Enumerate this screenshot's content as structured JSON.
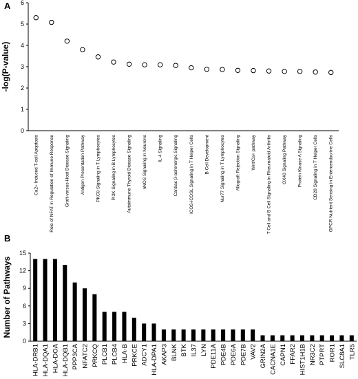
{
  "chart_data": [
    {
      "panel": "A",
      "type": "scatter",
      "ylabel": "-log(P-value)",
      "xlabel": "",
      "ylim": [
        0,
        6
      ],
      "yticks": [
        0,
        1,
        2,
        3,
        4,
        5,
        6
      ],
      "marker": "open-circle",
      "categories": [
        "Ca2+ Induced T-cell Apoptosis",
        "Role of NFAT in Regulation of Immune Response",
        "Graft-versus-Host Disease Signaling",
        "Antigen Presentation Pathway",
        "PKCθ Signaling in T Lymphocytes",
        "PI3K Signaling in B Lymphocytes",
        "Autoimmune Thyroid Disease Signaling",
        "nNOS Signaling in Neurons",
        "IL-4 Signaling",
        "Cardiac β-adrenergic Signaling",
        "iCOS-iCOSL Signaling in T Helper Cells",
        "B Cell Development",
        "Nur77 Signaling in T Lymphocytes",
        "Allograft Rejection Signaling",
        "Wnt/Ca+ pathway",
        "T Cell and B Cell Signaling in Rheumatoid Arthritis",
        "OX40 Signaling Pathway",
        "Protein Kinase A Signaling",
        "CD28 Signaling in T Helper Cells",
        "GPCR Nutrient Sensing in Enteroendocrine Cells"
      ],
      "values": [
        5.3,
        5.08,
        4.2,
        3.8,
        3.46,
        3.22,
        3.12,
        3.09,
        3.09,
        3.06,
        2.95,
        2.88,
        2.87,
        2.83,
        2.82,
        2.8,
        2.78,
        2.78,
        2.75,
        2.73
      ]
    },
    {
      "panel": "B",
      "type": "bar",
      "ylabel": "Number of Pathways",
      "xlabel": "",
      "ylim": [
        0,
        15
      ],
      "yticks": [
        0,
        3,
        6,
        9,
        12,
        15
      ],
      "categories": [
        "HLA-DRB1",
        "HLA-DQA1",
        "HLA-DOA",
        "HLA-DQB1",
        "PPP3CA",
        "NFATC2",
        "PRKCQ",
        "PLCB1",
        "PLCB4",
        "HLA-B",
        "PRKCE",
        "ADCY1",
        "HLA-DPA1",
        "AKAP3",
        "BLNK",
        "BTK",
        "IL37",
        "LYN",
        "PDE11A",
        "PDE4B",
        "PDE6A",
        "PDE7B",
        "VAV2",
        "GRIN2A",
        "CACNA1E",
        "CAPN1",
        "FFAR2",
        "HIST1H1B",
        "NR3C2",
        "PTPRT",
        "ROR1",
        "SLC8A1",
        "TLR5"
      ],
      "values": [
        14,
        14,
        14,
        13,
        10,
        9,
        8,
        5,
        5,
        5,
        4,
        3,
        3,
        2,
        2,
        2,
        2,
        2,
        2,
        2,
        2,
        2,
        2,
        1,
        1,
        1,
        1,
        1,
        1,
        1,
        1,
        1,
        1
      ],
      "bar_color": "#000000"
    }
  ]
}
